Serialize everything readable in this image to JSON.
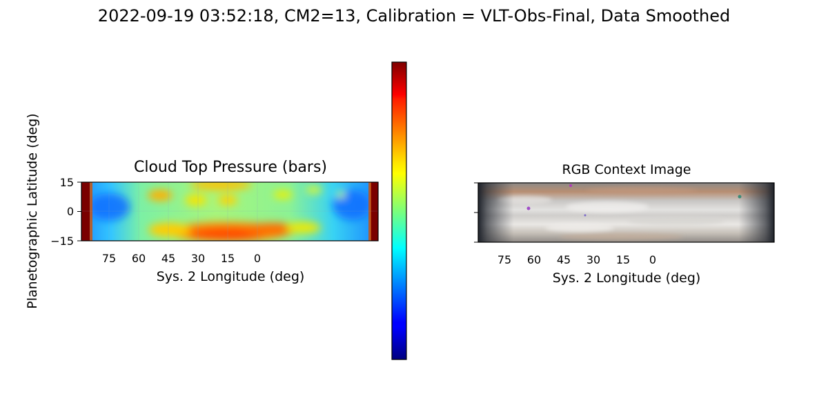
{
  "figure": {
    "suptitle": "2022-09-19 03:52:18, CM2=13, Calibration = VLT-Obs-Final, Data Smoothed"
  },
  "chart_data": [
    {
      "type": "heatmap",
      "title": "Cloud Top Pressure (bars)",
      "xlabel": "Sys. 2 Longitude (deg)",
      "ylabel": "Planetographic Latitude (deg)",
      "x_ticks": [
        "75",
        "60",
        "45",
        "30",
        "15",
        "0"
      ],
      "y_ticks": [
        "15",
        "0",
        "−15"
      ],
      "x_range": [
        88,
        -60
      ],
      "ylim": [
        -15,
        15
      ],
      "colormap": "jet",
      "colorbar": {
        "ticks": []
      }
    },
    {
      "type": "image",
      "title": "RGB Context Image",
      "xlabel": "Sys. 2 Longitude (deg)",
      "x_ticks": [
        "75",
        "60",
        "45",
        "30",
        "15",
        "0"
      ],
      "x_range": [
        88,
        -60
      ],
      "ylim": [
        -15,
        15
      ]
    }
  ]
}
